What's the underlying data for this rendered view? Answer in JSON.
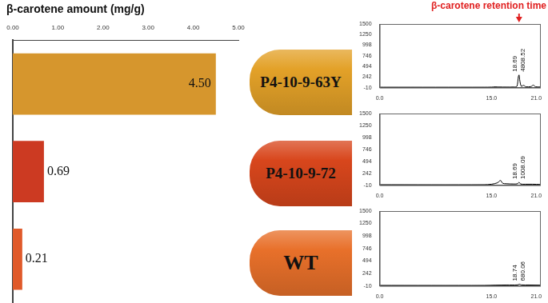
{
  "chart_data": [
    {
      "type": "bar",
      "title": "β-carotene amount (mg/g)",
      "orientation": "horizontal",
      "categories": [
        "P4-10-9-63Y",
        "P4-10-9-72",
        "WT"
      ],
      "values": [
        4.5,
        0.69,
        0.21
      ],
      "value_labels": [
        "4.50",
        "0.69",
        "0.21"
      ],
      "colors": [
        "#d6962d",
        "#cc3a22",
        "#e05a2a"
      ],
      "xlim": [
        0,
        5
      ],
      "xticks": [
        {
          "value": 0,
          "label": "0.00"
        },
        {
          "value": 1,
          "label": "1.00"
        },
        {
          "value": 2,
          "label": "2.00"
        },
        {
          "value": 3,
          "label": "3.00"
        },
        {
          "value": 4,
          "label": "4.00"
        },
        {
          "value": 5,
          "label": "5.00"
        }
      ],
      "grid": false,
      "data_labels": true,
      "tick_labels": "x",
      "legend": false
    },
    {
      "type": "line",
      "annotation": "β-carotene retention time",
      "color": "#000000",
      "x": [
        0,
        1,
        14,
        15,
        15.5,
        16,
        17,
        18,
        18.4,
        18.6,
        18.69,
        18.8,
        19,
        19.3,
        19.6,
        20.3,
        20.6,
        20.9,
        21.5
      ],
      "values": [
        0,
        0,
        0,
        2,
        8,
        5,
        3,
        5,
        20,
        250,
        290,
        150,
        20,
        45,
        10,
        15,
        50,
        10,
        5
      ],
      "peaks": [
        {
          "time": 18.69,
          "area": 4808.52
        }
      ],
      "xlim": [
        0,
        21.5
      ],
      "xticks": [
        {
          "value": 0,
          "label": "0.0"
        },
        {
          "value": 15,
          "label": "15.0"
        },
        {
          "value": 21,
          "label": "21.0"
        }
      ],
      "ylim": [
        -10,
        1500
      ],
      "yticks": [
        -10,
        242,
        494,
        746,
        998,
        1250,
        1500
      ],
      "grid": false
    },
    {
      "type": "line",
      "color": "#000000",
      "x": [
        0,
        14,
        15,
        15.8,
        16.2,
        16.5,
        17,
        18,
        18.5,
        18.69,
        18.9,
        19.5,
        20.5,
        21.5
      ],
      "values": [
        0,
        0,
        10,
        40,
        90,
        30,
        20,
        15,
        20,
        50,
        15,
        10,
        10,
        5
      ],
      "peaks": [
        {
          "time": 18.69,
          "area": 1008.09
        }
      ],
      "xlim": [
        0,
        21.5
      ],
      "xticks": [
        {
          "value": 0,
          "label": "0.0"
        },
        {
          "value": 15,
          "label": "15.0"
        },
        {
          "value": 21,
          "label": "21.0"
        }
      ],
      "ylim": [
        -10,
        1500
      ],
      "yticks": [
        -10,
        242,
        494,
        746,
        998,
        1250,
        1500
      ],
      "grid": false
    },
    {
      "type": "line",
      "color": "#000000",
      "x": [
        0,
        14,
        15.5,
        17,
        18.5,
        18.74,
        19,
        20,
        21.5
      ],
      "values": [
        0,
        0,
        5,
        8,
        10,
        25,
        10,
        8,
        5
      ],
      "peaks": [
        {
          "time": 18.74,
          "area": 680.06
        }
      ],
      "xlim": [
        0,
        21.5
      ],
      "xticks": [
        {
          "value": 0,
          "label": "0.0"
        },
        {
          "value": 15,
          "label": "15.0"
        },
        {
          "value": 21,
          "label": "21.0"
        }
      ],
      "ylim": [
        -10,
        1500
      ],
      "yticks": [
        -10,
        242,
        494,
        746,
        998,
        1250,
        1500
      ],
      "grid": false
    }
  ]
}
